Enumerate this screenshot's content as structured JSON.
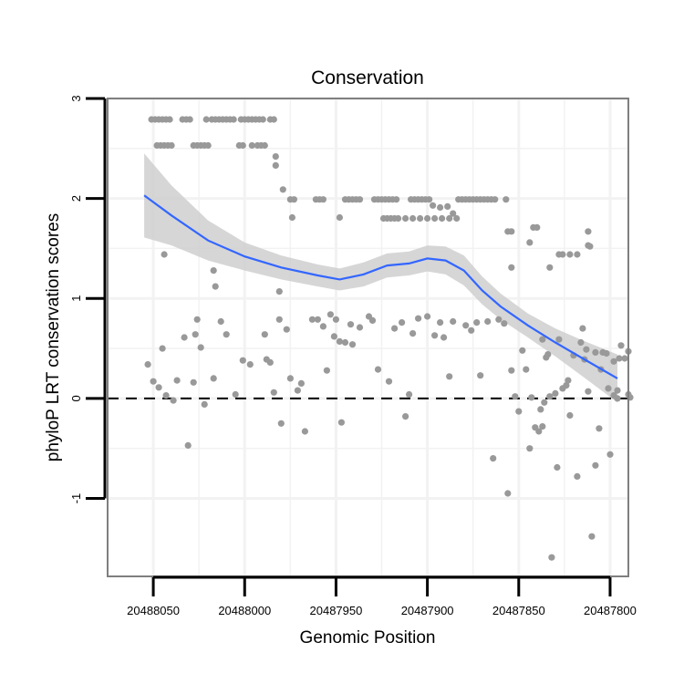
{
  "chart_data": {
    "type": "scatter",
    "title": "Conservation",
    "xlabel": "Genomic Position",
    "ylabel": "phyloP LRT conservation scores",
    "x_reversed": true,
    "xlim": [
      20488075,
      20487790
    ],
    "ylim": [
      -1.78,
      3.0
    ],
    "x_ticks": [
      20488050,
      20488000,
      20487950,
      20487900,
      20487850,
      20487800
    ],
    "x_tick_labels": [
      "20488050",
      "20488000",
      "20487950",
      "20487900",
      "20487850",
      "20487800"
    ],
    "y_ticks": [
      3,
      2,
      1,
      0,
      -1
    ],
    "y_tick_labels": [
      "3",
      "2",
      "1",
      "0",
      "-1"
    ],
    "reference_line": {
      "y": 0,
      "style": "dashed",
      "color": "#000000"
    },
    "colors": {
      "points": "#999999",
      "smooth": "#3366ff",
      "band": "#cccccc",
      "grid": "#f2f2f2",
      "frame": "#7f7f7f"
    },
    "points": [
      [
        20488041,
        2.79
      ],
      [
        20488043,
        2.79
      ],
      [
        20488045,
        2.79
      ],
      [
        20488047,
        2.79
      ],
      [
        20488049,
        2.79
      ],
      [
        20488051,
        2.79
      ],
      [
        20488034,
        2.79
      ],
      [
        20488032,
        2.79
      ],
      [
        20488030,
        2.79
      ],
      [
        20488021,
        2.79
      ],
      [
        20488018,
        2.79
      ],
      [
        20488016,
        2.79
      ],
      [
        20488014,
        2.79
      ],
      [
        20488012,
        2.79
      ],
      [
        20488010,
        2.79
      ],
      [
        20488008,
        2.79
      ],
      [
        20488006,
        2.79
      ],
      [
        20488002,
        2.79
      ],
      [
        20488000,
        2.79
      ],
      [
        20487998,
        2.79
      ],
      [
        20487996,
        2.79
      ],
      [
        20487994,
        2.79
      ],
      [
        20487992,
        2.79
      ],
      [
        20487990,
        2.79
      ],
      [
        20487986,
        2.79
      ],
      [
        20487984,
        2.79
      ],
      [
        20488048,
        2.53
      ],
      [
        20488046,
        2.53
      ],
      [
        20488044,
        2.53
      ],
      [
        20488042,
        2.53
      ],
      [
        20488040,
        2.53
      ],
      [
        20488028,
        2.53
      ],
      [
        20488026,
        2.53
      ],
      [
        20488024,
        2.53
      ],
      [
        20488022,
        2.53
      ],
      [
        20488020,
        2.53
      ],
      [
        20488003,
        2.53
      ],
      [
        20488001,
        2.53
      ],
      [
        20487996,
        2.53
      ],
      [
        20487993,
        2.53
      ],
      [
        20487991,
        2.53
      ],
      [
        20487989,
        2.53
      ],
      [
        20487983,
        2.42
      ],
      [
        20487983,
        2.33
      ],
      [
        20487979,
        2.09
      ],
      [
        20487975,
        1.99
      ],
      [
        20487973,
        1.99
      ],
      [
        20487961,
        1.99
      ],
      [
        20487959,
        1.99
      ],
      [
        20487957,
        1.99
      ],
      [
        20487945,
        1.99
      ],
      [
        20487943,
        1.99
      ],
      [
        20487941,
        1.99
      ],
      [
        20487939,
        1.99
      ],
      [
        20487937,
        1.99
      ],
      [
        20487929,
        1.99
      ],
      [
        20487927,
        1.99
      ],
      [
        20487925,
        1.99
      ],
      [
        20487923,
        1.99
      ],
      [
        20487921,
        1.99
      ],
      [
        20487919,
        1.99
      ],
      [
        20487917,
        1.99
      ],
      [
        20487909,
        1.99
      ],
      [
        20487907,
        1.99
      ],
      [
        20487905,
        1.99
      ],
      [
        20487903,
        1.99
      ],
      [
        20487901,
        1.99
      ],
      [
        20487899,
        1.99
      ],
      [
        20487883,
        1.99
      ],
      [
        20487881,
        1.99
      ],
      [
        20487879,
        1.99
      ],
      [
        20487877,
        1.99
      ],
      [
        20487875,
        1.99
      ],
      [
        20487873,
        1.99
      ],
      [
        20487871,
        1.99
      ],
      [
        20487869,
        1.99
      ],
      [
        20487867,
        1.99
      ],
      [
        20487865,
        1.99
      ],
      [
        20487863,
        1.99
      ],
      [
        20487857,
        1.99
      ],
      [
        20487974,
        1.81
      ],
      [
        20487948,
        1.81
      ],
      [
        20487924,
        1.8
      ],
      [
        20487922,
        1.8
      ],
      [
        20487920,
        1.8
      ],
      [
        20487918,
        1.8
      ],
      [
        20487916,
        1.8
      ],
      [
        20487912,
        1.8
      ],
      [
        20487908,
        1.8
      ],
      [
        20487904,
        1.8
      ],
      [
        20487900,
        1.8
      ],
      [
        20487896,
        1.8
      ],
      [
        20487892,
        1.8
      ],
      [
        20487888,
        1.8
      ],
      [
        20487884,
        1.8
      ],
      [
        20487897,
        1.93
      ],
      [
        20487893,
        1.91
      ],
      [
        20487889,
        1.92
      ],
      [
        20487886,
        1.85
      ],
      [
        20487856,
        1.67
      ],
      [
        20487854,
        1.67
      ],
      [
        20487842,
        1.71
      ],
      [
        20487840,
        1.71
      ],
      [
        20487844,
        1.56
      ],
      [
        20487854,
        1.31
      ],
      [
        20487833,
        1.31
      ],
      [
        20487828,
        1.44
      ],
      [
        20487826,
        1.44
      ],
      [
        20487822,
        1.44
      ],
      [
        20487818,
        1.44
      ],
      [
        20487812,
        1.67
      ],
      [
        20487812,
        1.53
      ],
      [
        20487811,
        1.52
      ],
      [
        20488044,
        1.44
      ],
      [
        20488017,
        1.28
      ],
      [
        20488016,
        1.12
      ],
      [
        20487981,
        1.07
      ],
      [
        20488053,
        0.34
      ],
      [
        20488050,
        0.17
      ],
      [
        20488047,
        0.11
      ],
      [
        20488045,
        0.5
      ],
      [
        20488043,
        0.03
      ],
      [
        20488039,
        -0.02
      ],
      [
        20488037,
        0.18
      ],
      [
        20488033,
        0.61
      ],
      [
        20488031,
        -0.47
      ],
      [
        20488028,
        0.16
      ],
      [
        20488027,
        0.64
      ],
      [
        20488026,
        0.79
      ],
      [
        20488024,
        0.51
      ],
      [
        20488022,
        -0.06
      ],
      [
        20488017,
        0.2
      ],
      [
        20488013,
        0.77
      ],
      [
        20488010,
        0.64
      ],
      [
        20488005,
        0.04
      ],
      [
        20488001,
        0.38
      ],
      [
        20487997,
        0.34
      ],
      [
        20487989,
        0.64
      ],
      [
        20487988,
        0.39
      ],
      [
        20487986,
        0.36
      ],
      [
        20487984,
        0.06
      ],
      [
        20487981,
        0.79
      ],
      [
        20487980,
        -0.25
      ],
      [
        20487977,
        0.69
      ],
      [
        20487975,
        0.2
      ],
      [
        20487971,
        0.08
      ],
      [
        20487969,
        0.15
      ],
      [
        20487967,
        -0.33
      ],
      [
        20487963,
        0.79
      ],
      [
        20487960,
        0.79
      ],
      [
        20487957,
        0.72
      ],
      [
        20487955,
        0.28
      ],
      [
        20487953,
        0.84
      ],
      [
        20487951,
        0.62
      ],
      [
        20487950,
        0.79
      ],
      [
        20487948,
        0.57
      ],
      [
        20487947,
        -0.24
      ],
      [
        20487945,
        0.56
      ],
      [
        20487942,
        0.74
      ],
      [
        20487941,
        0.54
      ],
      [
        20487937,
        0.71
      ],
      [
        20487932,
        0.82
      ],
      [
        20487930,
        0.78
      ],
      [
        20487927,
        0.29
      ],
      [
        20487921,
        0.17
      ],
      [
        20487918,
        0.7
      ],
      [
        20487914,
        0.76
      ],
      [
        20487912,
        -0.18
      ],
      [
        20487910,
        0.04
      ],
      [
        20487908,
        0.65
      ],
      [
        20487905,
        0.8
      ],
      [
        20487900,
        0.82
      ],
      [
        20487896,
        0.63
      ],
      [
        20487893,
        0.76
      ],
      [
        20487891,
        0.61
      ],
      [
        20487888,
        0.22
      ],
      [
        20487886,
        0.77
      ],
      [
        20487879,
        0.73
      ],
      [
        20487876,
        0.68
      ],
      [
        20487873,
        0.76
      ],
      [
        20487871,
        0.23
      ],
      [
        20487867,
        0.77
      ],
      [
        20487864,
        -0.6
      ],
      [
        20487861,
        0.79
      ],
      [
        20487858,
        0.75
      ],
      [
        20487856,
        -0.95
      ],
      [
        20487854,
        0.28
      ],
      [
        20487852,
        0.02
      ],
      [
        20487850,
        -0.13
      ],
      [
        20487848,
        0.48
      ],
      [
        20487846,
        0.29
      ],
      [
        20487844,
        -0.5
      ],
      [
        20487841,
        -0.29
      ],
      [
        20487839,
        -0.33
      ],
      [
        20487837,
        -0.28
      ],
      [
        20487834,
        0.44
      ],
      [
        20487833,
        0.02
      ],
      [
        20487830,
        0.05
      ],
      [
        20487828,
        0.59
      ],
      [
        20487826,
        0.1
      ],
      [
        20487824,
        0.13
      ],
      [
        20487822,
        -0.17
      ],
      [
        20487820,
        0.43
      ],
      [
        20487818,
        -0.78
      ],
      [
        20487816,
        0.56
      ],
      [
        20487814,
        0.39
      ],
      [
        20487812,
        0.07
      ],
      [
        20487810,
        -1.38
      ],
      [
        20487808,
        0.46
      ],
      [
        20487806,
        -0.3
      ],
      [
        20487804,
        0.46
      ],
      [
        20487802,
        0.45
      ],
      [
        20487800,
        -0.56
      ],
      [
        20487798,
        0.37
      ],
      [
        20487796,
        0.08
      ],
      [
        20487794,
        0.53
      ],
      [
        20487792,
        0.4
      ],
      [
        20487790,
        0.04
      ],
      [
        20487843,
        0.01
      ],
      [
        20487838,
        -0.11
      ],
      [
        20487836,
        -0.04
      ],
      [
        20487832,
        -1.59
      ],
      [
        20487829,
        -0.69
      ],
      [
        20487823,
        0.18
      ],
      [
        20487808,
        -0.67
      ],
      [
        20487837,
        0.59
      ],
      [
        20487835,
        0.41
      ],
      [
        20487805,
        0.29
      ],
      [
        20487801,
        0.1
      ],
      [
        20487798,
        0.03
      ],
      [
        20487796,
        0.0
      ],
      [
        20487795,
        0.4
      ],
      [
        20487815,
        0.7
      ],
      [
        20487813,
        0.49
      ],
      [
        20487790,
        0.47
      ],
      [
        20487789,
        0.01
      ]
    ],
    "smooth": [
      [
        20488055,
        2.03
      ],
      [
        20488040,
        1.83
      ],
      [
        20488020,
        1.58
      ],
      [
        20488000,
        1.42
      ],
      [
        20487980,
        1.31
      ],
      [
        20487960,
        1.23
      ],
      [
        20487948,
        1.19
      ],
      [
        20487935,
        1.24
      ],
      [
        20487922,
        1.33
      ],
      [
        20487910,
        1.35
      ],
      [
        20487900,
        1.4
      ],
      [
        20487890,
        1.38
      ],
      [
        20487880,
        1.28
      ],
      [
        20487870,
        1.08
      ],
      [
        20487860,
        0.92
      ],
      [
        20487845,
        0.73
      ],
      [
        20487830,
        0.56
      ],
      [
        20487815,
        0.4
      ],
      [
        20487796,
        0.2
      ]
    ],
    "smooth_ci_halfwidth": [
      0.42,
      0.3,
      0.2,
      0.14,
      0.12,
      0.11,
      0.11,
      0.12,
      0.12,
      0.12,
      0.13,
      0.14,
      0.15,
      0.14,
      0.13,
      0.12,
      0.14,
      0.18,
      0.24
    ]
  }
}
